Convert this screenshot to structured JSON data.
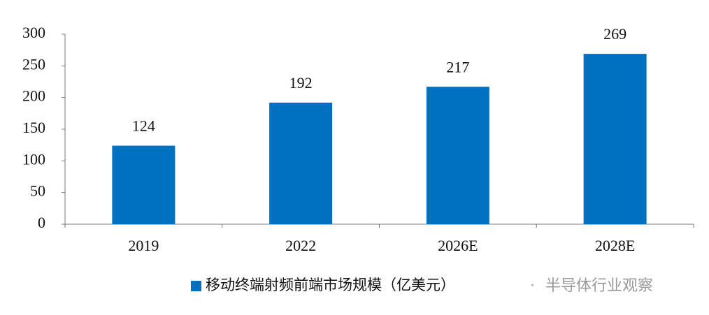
{
  "chart_data": {
    "type": "bar",
    "categories": [
      "2019",
      "2022",
      "2026E",
      "2028E"
    ],
    "values": [
      124,
      192,
      217,
      269
    ],
    "series_name": "移动终端射频前端市场规模（亿美元）",
    "color": "#0070c0",
    "ylim": [
      0,
      300
    ],
    "yticks": [
      0,
      50,
      100,
      150,
      200,
      250,
      300
    ],
    "grid": false,
    "legend": "bottom"
  },
  "watermark": "半导体行业观察"
}
